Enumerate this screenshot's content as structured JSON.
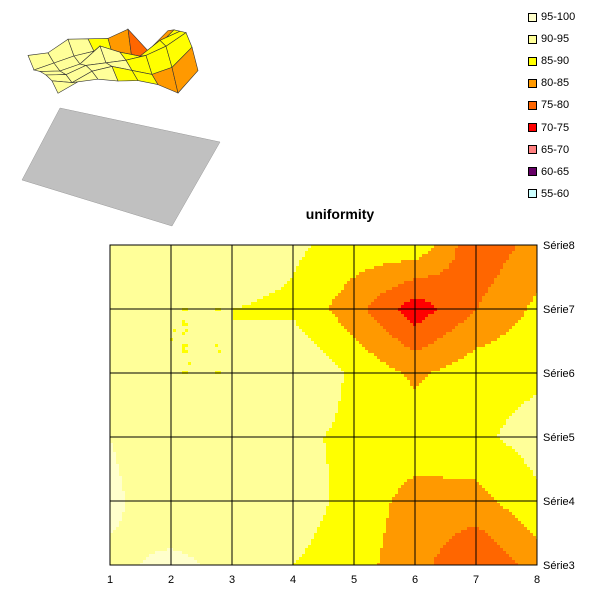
{
  "chart_data": {
    "type": "heatmap",
    "subtype": "contour",
    "title": "uniformity",
    "x_categories": [
      "1",
      "2",
      "3",
      "4",
      "5",
      "6",
      "7",
      "8"
    ],
    "series": [
      "Série3",
      "Série4",
      "Série5",
      "Série6",
      "Série7",
      "Série8"
    ],
    "values": [
      [
        94,
        96,
        94,
        90,
        87,
        82,
        75,
        82
      ],
      [
        96,
        92,
        94,
        93,
        88,
        83,
        83,
        89
      ],
      [
        95,
        92,
        93,
        91,
        89,
        88,
        89,
        92
      ],
      [
        93,
        90,
        90,
        95,
        89,
        84,
        88,
        89
      ],
      [
        90,
        90,
        90,
        89,
        82,
        72,
        80,
        86
      ],
      [
        93,
        91,
        94,
        91,
        88,
        89,
        76,
        82
      ]
    ],
    "legend_position": "top-right",
    "legend": [
      {
        "label": "95-100",
        "color": "#ffffcc"
      },
      {
        "label": "90-95",
        "color": "#ffff99"
      },
      {
        "label": "85-90",
        "color": "#ffff00"
      },
      {
        "label": "80-85",
        "color": "#ff9900"
      },
      {
        "label": "75-80",
        "color": "#ff6600"
      },
      {
        "label": "70-75",
        "color": "#ff0000"
      },
      {
        "label": "65-70",
        "color": "#ff8080"
      },
      {
        "label": "60-65",
        "color": "#660066"
      },
      {
        "label": "55-60",
        "color": "#ccffff"
      }
    ],
    "band_edges": [
      55,
      60,
      65,
      70,
      75,
      80,
      85,
      90,
      95,
      100
    ],
    "band_colors": [
      "#ccffff",
      "#660066",
      "#ff8080",
      "#ff0000",
      "#ff6600",
      "#ff9900",
      "#ffff00",
      "#ffff99",
      "#ffffcc"
    ],
    "grid": true,
    "surface_chart": {
      "type": "3d-surface",
      "floor_color": "#c0c0c0"
    }
  }
}
